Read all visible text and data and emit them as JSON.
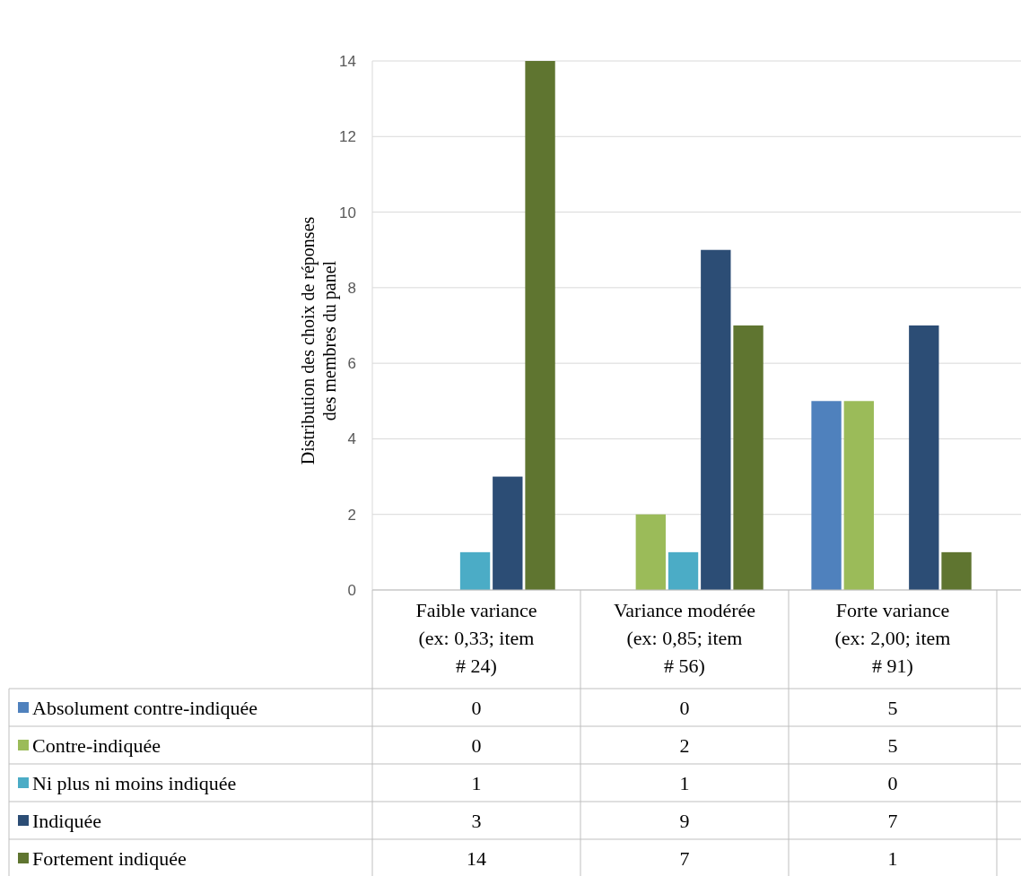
{
  "chart_data": {
    "type": "bar",
    "ylabel": "Distribution des choix de réponses des membres du panel",
    "categories": [
      "Faible variance (ex: 0,33; item # 24)",
      "Variance modérée (ex: 0,85; item # 56)",
      "Forte variance (ex: 2,00; item # 91)"
    ],
    "series": [
      {
        "name": "Absolument contre-indiquée",
        "color": "#4f81bd",
        "values": [
          0,
          0,
          5
        ]
      },
      {
        "name": "Contre-indiquée",
        "color": "#9bbb59",
        "values": [
          0,
          2,
          5
        ]
      },
      {
        "name": "Ni plus ni moins indiquée",
        "color": "#4bacc6",
        "values": [
          1,
          1,
          0
        ]
      },
      {
        "name": "Indiquée",
        "color": "#2c4d75",
        "values": [
          3,
          9,
          7
        ]
      },
      {
        "name": "Fortement indiquée",
        "color": "#5f7530",
        "values": [
          14,
          7,
          1
        ]
      }
    ],
    "ylim": [
      0,
      14
    ],
    "yticks": [
      0,
      2,
      4,
      6,
      8,
      10,
      12,
      14
    ],
    "grid": "y",
    "legend": "bottom",
    "data_labels": true
  }
}
